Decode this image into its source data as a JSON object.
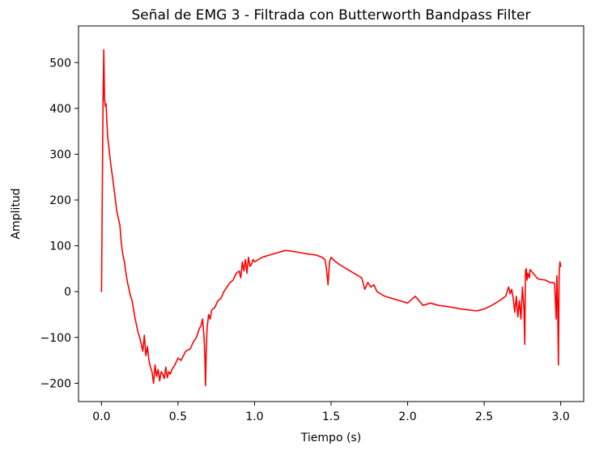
{
  "chart_data": {
    "type": "line",
    "title": "Señal de EMG 3 - Filtrada con Butterworth Bandpass Filter",
    "xlabel": "Tiempo (s)",
    "ylabel": "Amplitud",
    "xlim": [
      -0.15,
      3.15
    ],
    "ylim": [
      -240,
      580
    ],
    "xticks": [
      0.0,
      0.5,
      1.0,
      1.5,
      2.0,
      2.5,
      3.0
    ],
    "xtick_labels": [
      "0.0",
      "0.5",
      "1.0",
      "1.5",
      "2.0",
      "2.5",
      "3.0"
    ],
    "yticks": [
      -200,
      -100,
      0,
      100,
      200,
      300,
      400,
      500
    ],
    "ytick_labels": [
      "−200",
      "−100",
      "0",
      "100",
      "200",
      "300",
      "400",
      "500"
    ],
    "grid": false,
    "series": [
      {
        "color": "#ff0000",
        "x": [
          0.0,
          0.01,
          0.015,
          0.02,
          0.025,
          0.03,
          0.04,
          0.05,
          0.06,
          0.08,
          0.1,
          0.12,
          0.13,
          0.14,
          0.15,
          0.16,
          0.17,
          0.18,
          0.19,
          0.2,
          0.22,
          0.24,
          0.25,
          0.26,
          0.27,
          0.28,
          0.29,
          0.3,
          0.31,
          0.32,
          0.33,
          0.34,
          0.35,
          0.36,
          0.37,
          0.38,
          0.39,
          0.4,
          0.41,
          0.42,
          0.43,
          0.44,
          0.45,
          0.46,
          0.48,
          0.5,
          0.52,
          0.55,
          0.58,
          0.6,
          0.62,
          0.64,
          0.65,
          0.66,
          0.67,
          0.675,
          0.68,
          0.685,
          0.69,
          0.7,
          0.71,
          0.72,
          0.74,
          0.76,
          0.78,
          0.8,
          0.82,
          0.84,
          0.86,
          0.88,
          0.9,
          0.91,
          0.92,
          0.93,
          0.94,
          0.95,
          0.96,
          0.97,
          0.98,
          0.99,
          1.0,
          1.05,
          1.1,
          1.15,
          1.2,
          1.25,
          1.3,
          1.35,
          1.4,
          1.44,
          1.46,
          1.47,
          1.48,
          1.49,
          1.5,
          1.52,
          1.55,
          1.6,
          1.65,
          1.7,
          1.72,
          1.74,
          1.76,
          1.78,
          1.8,
          1.85,
          1.9,
          1.95,
          2.0,
          2.05,
          2.1,
          2.15,
          2.2,
          2.25,
          2.3,
          2.35,
          2.4,
          2.45,
          2.5,
          2.55,
          2.6,
          2.62,
          2.64,
          2.66,
          2.67,
          2.68,
          2.69,
          2.7,
          2.71,
          2.72,
          2.73,
          2.74,
          2.75,
          2.76,
          2.765,
          2.77,
          2.775,
          2.78,
          2.785,
          2.79,
          2.795,
          2.8,
          2.85,
          2.9,
          2.93,
          2.95,
          2.96,
          2.97,
          2.975,
          2.98,
          2.985,
          2.99,
          2.995,
          3.0
        ],
        "y": [
          0,
          420,
          528,
          420,
          405,
          410,
          340,
          310,
          280,
          230,
          175,
          145,
          105,
          80,
          65,
          40,
          20,
          5,
          -10,
          -20,
          -60,
          -90,
          -100,
          -115,
          -130,
          -95,
          -140,
          -120,
          -150,
          -165,
          -175,
          -200,
          -160,
          -185,
          -170,
          -195,
          -175,
          -180,
          -190,
          -165,
          -188,
          -175,
          -180,
          -170,
          -160,
          -145,
          -150,
          -130,
          -125,
          -110,
          -100,
          -80,
          -75,
          -60,
          -100,
          -140,
          -205,
          -120,
          -80,
          -50,
          -60,
          -40,
          -35,
          -20,
          -15,
          0,
          10,
          20,
          25,
          40,
          45,
          30,
          65,
          45,
          70,
          40,
          75,
          55,
          60,
          70,
          65,
          75,
          80,
          85,
          90,
          88,
          85,
          82,
          80,
          75,
          70,
          50,
          15,
          65,
          75,
          68,
          60,
          50,
          40,
          30,
          5,
          20,
          10,
          15,
          0,
          -10,
          -15,
          -20,
          -25,
          -10,
          -30,
          -25,
          -30,
          -32,
          -35,
          -38,
          -40,
          -42,
          -38,
          -30,
          -20,
          -15,
          -10,
          10,
          -5,
          5,
          -15,
          -45,
          -10,
          -55,
          -20,
          -60,
          10,
          -40,
          -115,
          45,
          50,
          25,
          40,
          35,
          30,
          48,
          28,
          25,
          20,
          20,
          18,
          -60,
          35,
          -30,
          -160,
          40,
          65,
          55
        ]
      }
    ]
  }
}
